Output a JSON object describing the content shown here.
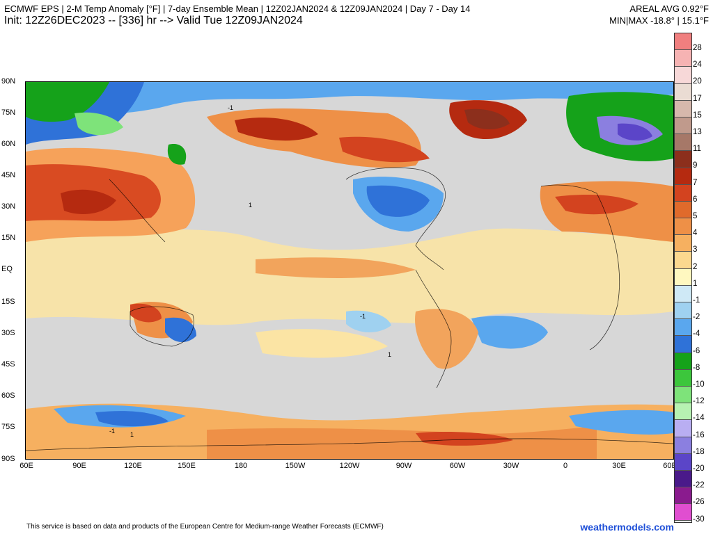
{
  "header": {
    "title": "ECMWF EPS | 2-M Temp Anomaly [°F] | 7-day Ensemble Mean | 12Z02JAN2024 & 12Z09JAN2024 | Day 7 - Day 14",
    "init": "Init: 12Z26DEC2023 -- [336] hr --> Valid Tue 12Z09JAN2024",
    "areal_avg": "AREAL AVG 0.92°F",
    "minmax": "MIN|MAX -18.8° | 15.1°F"
  },
  "map": {
    "lat_labels": [
      "90N",
      "75N",
      "60N",
      "45N",
      "30N",
      "15N",
      "EQ",
      "15S",
      "30S",
      "45S",
      "60S",
      "75S",
      "90S"
    ],
    "lon_labels": [
      "60E",
      "90E",
      "120E",
      "150E",
      "180",
      "150W",
      "120W",
      "90W",
      "60W",
      "30W",
      "0",
      "30E",
      "60E"
    ],
    "contour_label": "-1",
    "contour_label_pos": "1"
  },
  "colorbar": {
    "labels": [
      "28",
      "24",
      "20",
      "17",
      "15",
      "13",
      "11",
      "9",
      "7",
      "6",
      "5",
      "4",
      "3",
      "2",
      "1",
      "-1",
      "-2",
      "-4",
      "-6",
      "-8",
      "-10",
      "-12",
      "-14",
      "-16",
      "-18",
      "-20",
      "-22",
      "-26",
      "-30"
    ],
    "colors": [
      "#f07f7f",
      "#f6b3b3",
      "#f7d8d8",
      "#eadcd3",
      "#d6b8ac",
      "#c09a8c",
      "#a67868",
      "#8c2f1c",
      "#b52a10",
      "#d3431f",
      "#e06a2b",
      "#ee9047",
      "#f6b060",
      "#fbd88f",
      "#fff8c0",
      "#cfe9f6",
      "#9fd1f0",
      "#5aa7ee",
      "#2f72d8",
      "#15a21a",
      "#3cc63c",
      "#7ee37a",
      "#b7f2b2",
      "#b9aef2",
      "#8b7fe0",
      "#5b45c8",
      "#4a1a8a",
      "#8a1b8e",
      "#e04ed0"
    ]
  },
  "footer": {
    "left": "This service is based on data and products of the European Centre for Medium-range Weather Forecasts (ECMWF)",
    "right": "weathermodels.com"
  }
}
